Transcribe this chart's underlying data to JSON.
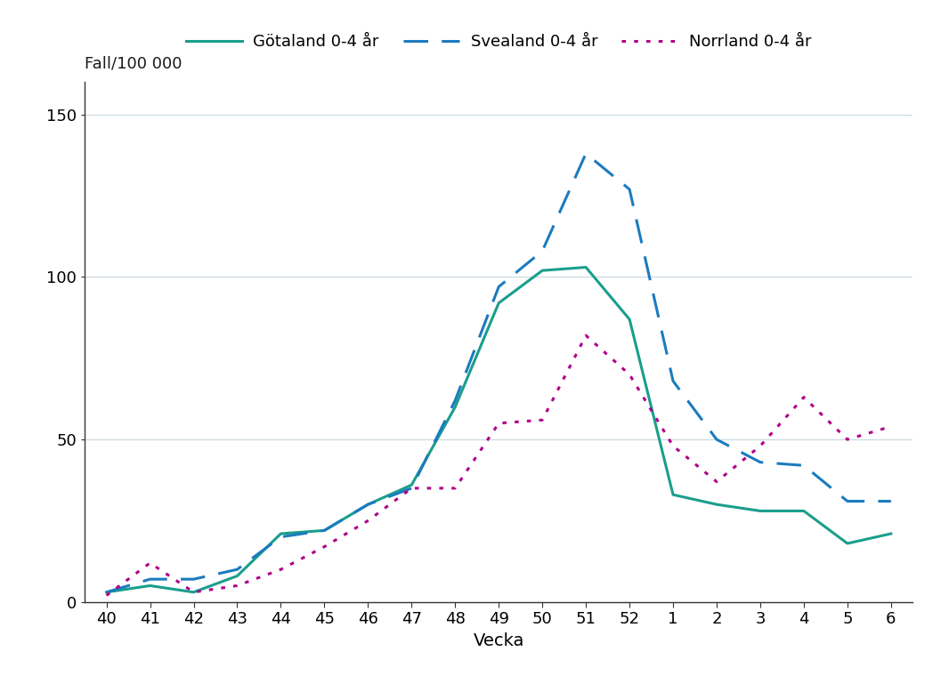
{
  "x_labels": [
    "40",
    "41",
    "42",
    "43",
    "44",
    "45",
    "46",
    "47",
    "48",
    "49",
    "50",
    "51",
    "52",
    "1",
    "2",
    "3",
    "4",
    "5",
    "6"
  ],
  "x_positions": [
    0,
    1,
    2,
    3,
    4,
    5,
    6,
    7,
    8,
    9,
    10,
    11,
    12,
    13,
    14,
    15,
    16,
    17,
    18
  ],
  "gotaland": [
    3,
    5,
    3,
    8,
    21,
    22,
    30,
    36,
    60,
    92,
    102,
    103,
    87,
    33,
    30,
    28,
    28,
    18,
    21
  ],
  "svealand": [
    3,
    7,
    7,
    10,
    20,
    22,
    30,
    35,
    62,
    97,
    108,
    138,
    127,
    68,
    50,
    43,
    42,
    31,
    31
  ],
  "norrland": [
    2,
    12,
    3,
    5,
    10,
    17,
    25,
    35,
    35,
    55,
    56,
    82,
    70,
    48,
    37,
    48,
    63,
    50,
    54
  ],
  "gotaland_color": "#1a9e8c",
  "svealand_color": "#1b7bbf",
  "norrland_color": "#b0008a",
  "ylabel": "Fall/100 000",
  "xlabel": "Vecka",
  "ylim": [
    0,
    160
  ],
  "yticks": [
    0,
    50,
    100,
    150
  ],
  "legend_labels": [
    "Götaland 0-4 år",
    "Svealand 0-4 år",
    "Norrland 0-4 år"
  ],
  "background_color": "#ffffff",
  "grid_color": "#c8d8e0"
}
